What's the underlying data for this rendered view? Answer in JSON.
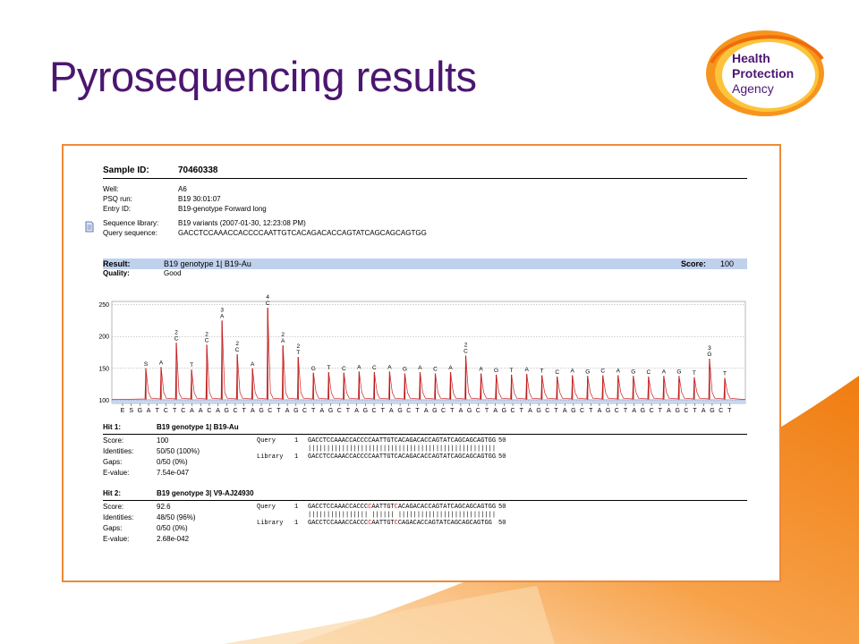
{
  "slide": {
    "title": "Pyrosequencing results"
  },
  "logo": {
    "line1": "Health",
    "line2": "Protection",
    "line3": "Agency"
  },
  "colors": {
    "title": "#4b1670",
    "accent_orange": "#f08a35",
    "result_bar": "#c0d1ee",
    "trace": "#cc2020"
  },
  "report": {
    "sample_label": "Sample ID:",
    "sample_id": "70460338",
    "well_label": "Well:",
    "well": "A6",
    "psq_label": "PSQ run:",
    "psq": "B19 30:01:07",
    "entry_label": "Entry ID:",
    "entry": "B19-genotype Forward long",
    "library_label": "Sequence library:",
    "library": "B19 variants (2007-01-30, 12:23:08 PM)",
    "query_label": "Query sequence:",
    "query": "GACCTCCAAACCACCCCAATTGTCACAGACACCAGTATCAGCAGCAGTGG",
    "result_label": "Result:",
    "result": "B19 genotype 1| B19-Au",
    "score_label": "Score:",
    "score": "100",
    "quality_label": "Quality:",
    "quality": "Good"
  },
  "chart_data": {
    "type": "bar",
    "y_ticks": [
      "250",
      "200",
      "150",
      "100"
    ],
    "ylim": [
      95,
      255
    ],
    "grid": "horizontal dotted",
    "peaks": [
      {
        "h": 150,
        "l": "S"
      },
      {
        "h": 152,
        "l": "A"
      },
      {
        "h": 190,
        "l": "2 C"
      },
      {
        "h": 148,
        "l": "T"
      },
      {
        "h": 187,
        "l": "2 C"
      },
      {
        "h": 225,
        "l": "3 A"
      },
      {
        "h": 172,
        "l": "2 C"
      },
      {
        "h": 150,
        "l": "A"
      },
      {
        "h": 245,
        "l": "4 C"
      },
      {
        "h": 186,
        "l": "2 A"
      },
      {
        "h": 168,
        "l": "2 T"
      },
      {
        "h": 143,
        "l": "G"
      },
      {
        "h": 144,
        "l": "T"
      },
      {
        "h": 143,
        "l": "C"
      },
      {
        "h": 145,
        "l": "A"
      },
      {
        "h": 144,
        "l": "C"
      },
      {
        "h": 145,
        "l": "A"
      },
      {
        "h": 142,
        "l": "G"
      },
      {
        "h": 144,
        "l": "A"
      },
      {
        "h": 142,
        "l": "C"
      },
      {
        "h": 144,
        "l": "A"
      },
      {
        "h": 170,
        "l": "2 C"
      },
      {
        "h": 142,
        "l": "A"
      },
      {
        "h": 140,
        "l": "G"
      },
      {
        "h": 140,
        "l": "T"
      },
      {
        "h": 141,
        "l": "A"
      },
      {
        "h": 139,
        "l": "T"
      },
      {
        "h": 137,
        "l": "C"
      },
      {
        "h": 139,
        "l": "A"
      },
      {
        "h": 138,
        "l": "G"
      },
      {
        "h": 139,
        "l": "C"
      },
      {
        "h": 139,
        "l": "A"
      },
      {
        "h": 138,
        "l": "G"
      },
      {
        "h": 137,
        "l": "C"
      },
      {
        "h": 138,
        "l": "A"
      },
      {
        "h": 138,
        "l": "G"
      },
      {
        "h": 136,
        "l": "T"
      },
      {
        "h": 165,
        "l": "3 G"
      },
      {
        "h": 135,
        "l": "T"
      }
    ],
    "dispensation": [
      "E",
      "S",
      "G",
      "A",
      "T",
      "C",
      "T",
      "C",
      "A",
      "A",
      "C",
      "A",
      "G",
      "C",
      "T",
      "A",
      "G",
      "C",
      "T",
      "A",
      "G",
      "C",
      "T",
      "A",
      "G",
      "C",
      "T",
      "A",
      "G",
      "C",
      "T",
      "A",
      "G",
      "C",
      "T",
      "A",
      "G",
      "C",
      "T",
      "A",
      "G",
      "C",
      "T",
      "A",
      "G",
      "C",
      "T",
      "A",
      "G",
      "C",
      "T",
      "A",
      "G",
      "C",
      "T",
      "A",
      "G",
      "C",
      "T",
      "A",
      "G",
      "C",
      "T",
      "A",
      "G",
      "C",
      "T",
      "A",
      "G",
      "C",
      "T"
    ]
  },
  "hits": [
    {
      "title_label": "Hit 1:",
      "title": "B19 genotype 1| B19-Au",
      "score_label": "Score:",
      "score": "100",
      "ident_label": "Identities:",
      "ident": "50/50 (100%)",
      "gaps_label": "Gaps:",
      "gaps": "0/50 (0%)",
      "eval_label": "E-value:",
      "eval": "7.54e-047",
      "query_tag": "Query",
      "query_start": "1",
      "query_end": "50",
      "query_seq": "GACCTCCAAACCACCCCAATTGTCACAGACACCAGTATCAGCAGCAGTGG",
      "match": "||||||||||||||||||||||||||||||||||||||||||||||||||",
      "library_tag": "Library",
      "library_start": "1",
      "library_end": "50",
      "library_seq": "GACCTCCAAACCACCCCAATTGTCACAGACACCAGTATCAGCAGCAGTGG"
    },
    {
      "title_label": "Hit 2:",
      "title": "B19 genotype 3| V9-AJ24930",
      "score_label": "Score:",
      "score": "92.6",
      "ident_label": "Identities:",
      "ident": "48/50 (96%)",
      "gaps_label": "Gaps:",
      "gaps": "0/50 (0%)",
      "eval_label": "E-value:",
      "eval": "2.68e-042",
      "query_tag": "Query",
      "query_start": "1",
      "query_end": "50",
      "query_a": "GACCTCCAAACCACCC",
      "query_d1": "C",
      "query_b": "AATTGT",
      "query_d2": "C",
      "query_c": "ACAGACACCAGTATCAGCAGCAGTGG",
      "match": "|||||||||||||||| |||||| ||||||||||||||||||||||||||",
      "library_tag": "Library",
      "library_start": "1",
      "library_end": "50",
      "library_a": "GACCTCCAAACCACCC",
      "library_d1": "C",
      "library_b": "AATTGT",
      "library_d2": "C",
      "library_c": "CAGACACCAGTATCAGCAGCAGTGG"
    }
  ]
}
